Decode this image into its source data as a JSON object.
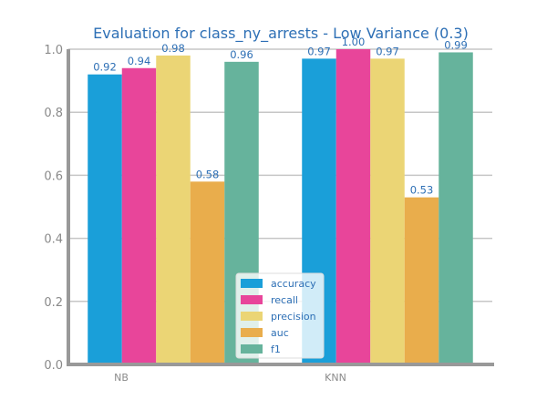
{
  "chart_data": {
    "type": "bar",
    "title": "Evaluation for class_ny_arrests - Low Variance (0.3)",
    "xlabel": "",
    "ylabel": "",
    "categories": [
      "NB",
      "KNN"
    ],
    "ylim": [
      0,
      1.0
    ],
    "yticks": [
      "0.0",
      "0.2",
      "0.4",
      "0.6",
      "0.8",
      "1.0"
    ],
    "grid": "horizontal",
    "legend_position": "bottom-center",
    "series": [
      {
        "name": "accuracy",
        "color": "#1a9fd9",
        "values": [
          0.92,
          0.97
        ],
        "labels": [
          "0.92",
          "0.97"
        ]
      },
      {
        "name": "recall",
        "color": "#e8459a",
        "values": [
          0.94,
          1.0
        ],
        "labels": [
          "0.94",
          "1.00"
        ]
      },
      {
        "name": "precision",
        "color": "#ebd575",
        "values": [
          0.98,
          0.97
        ],
        "labels": [
          "0.98",
          "0.97"
        ]
      },
      {
        "name": "auc",
        "color": "#e9ad4c",
        "values": [
          0.58,
          0.53
        ],
        "labels": [
          "0.58",
          "0.53"
        ]
      },
      {
        "name": "f1",
        "color": "#66b39c",
        "values": [
          0.96,
          0.99
        ],
        "labels": [
          "0.96",
          "0.99"
        ]
      }
    ]
  }
}
